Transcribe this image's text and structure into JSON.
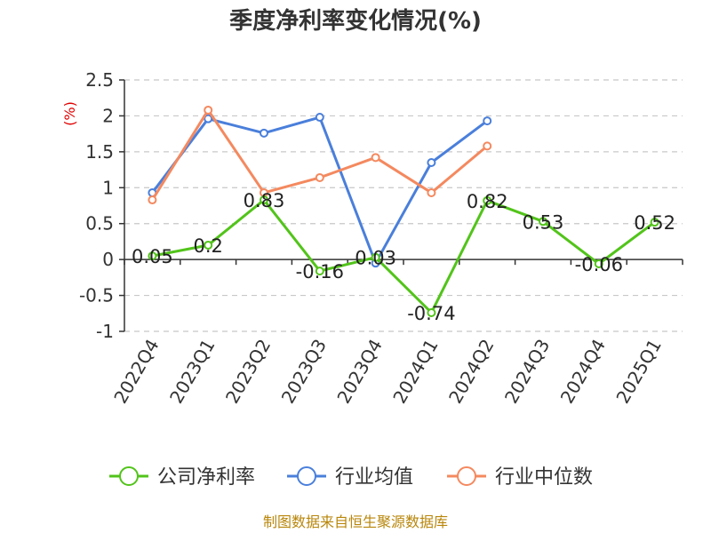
{
  "title": "季度净利率变化情况(%)",
  "unit_label": "(%)",
  "source": "制图数据来自恒生聚源数据库",
  "chart_data": {
    "type": "line",
    "title": "季度净利率变化情况(%)",
    "ylabel": "(%)",
    "xlabel": "",
    "categories": [
      "2022Q4",
      "2023Q1",
      "2023Q2",
      "2023Q3",
      "2023Q4",
      "2024Q1",
      "2024Q2",
      "2024Q3",
      "2024Q4",
      "2025Q1"
    ],
    "ylim": [
      -1,
      2.5
    ],
    "yticks": [
      2.5,
      2,
      1.5,
      1,
      0.5,
      0,
      -0.5,
      -1
    ],
    "ytick_labels": [
      "2.5",
      "2",
      "1.5",
      "1",
      "0.5",
      "0",
      "-0.5",
      "-1"
    ],
    "grid": true,
    "legend_position": "bottom",
    "series": [
      {
        "name": "公司净利率",
        "color": "#52c41a",
        "values": [
          0.05,
          0.2,
          0.83,
          -0.16,
          0.03,
          -0.74,
          0.82,
          0.53,
          -0.06,
          0.52
        ],
        "labels": [
          "0.05",
          "0.2",
          "0.83",
          "-0.16",
          "0.03",
          "-0.74",
          "0.82",
          "0.53",
          "-0.06",
          "0.52"
        ]
      },
      {
        "name": "行业均值",
        "color": "#4a7fdb",
        "values": [
          0.93,
          1.96,
          1.76,
          1.98,
          -0.05,
          1.35,
          1.93,
          null,
          null,
          null
        ]
      },
      {
        "name": "行业中位数",
        "color": "#f4895f",
        "values": [
          0.83,
          2.08,
          0.93,
          1.14,
          1.42,
          0.93,
          1.58,
          null,
          null,
          null
        ]
      }
    ]
  }
}
